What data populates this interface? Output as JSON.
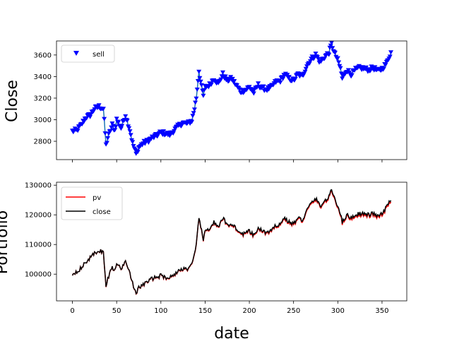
{
  "chart_data": [
    {
      "type": "line",
      "ylabel": "Close",
      "xlim": [
        -18,
        378
      ],
      "ylim": [
        2630,
        3730
      ],
      "yticks": [
        2800,
        3000,
        3200,
        3400,
        3600
      ],
      "xticks": [
        0,
        50,
        100,
        150,
        200,
        250,
        300,
        350
      ],
      "show_xtick_labels": false,
      "legend": {
        "placement": "top-left",
        "entries": [
          {
            "label": "sell",
            "color": "#0000ff",
            "marker": "triangle-down"
          }
        ]
      },
      "line_color": "#1f77b4",
      "marker_color": "#0000ff",
      "anchors": [
        [
          0,
          2890
        ],
        [
          5,
          2900
        ],
        [
          10,
          2950
        ],
        [
          15,
          3020
        ],
        [
          20,
          3040
        ],
        [
          25,
          3100
        ],
        [
          30,
          3120
        ],
        [
          35,
          3100
        ],
        [
          38,
          2760
        ],
        [
          40,
          2830
        ],
        [
          45,
          2950
        ],
        [
          48,
          2900
        ],
        [
          50,
          3000
        ],
        [
          55,
          2920
        ],
        [
          60,
          3040
        ],
        [
          65,
          2900
        ],
        [
          68,
          2780
        ],
        [
          72,
          2680
        ],
        [
          75,
          2740
        ],
        [
          80,
          2780
        ],
        [
          85,
          2800
        ],
        [
          90,
          2830
        ],
        [
          95,
          2850
        ],
        [
          100,
          2880
        ],
        [
          105,
          2870
        ],
        [
          110,
          2860
        ],
        [
          115,
          2900
        ],
        [
          120,
          2940
        ],
        [
          125,
          2970
        ],
        [
          130,
          2960
        ],
        [
          135,
          2990
        ],
        [
          138,
          3100
        ],
        [
          140,
          3200
        ],
        [
          143,
          3450
        ],
        [
          146,
          3300
        ],
        [
          148,
          3220
        ],
        [
          150,
          3300
        ],
        [
          155,
          3320
        ],
        [
          160,
          3380
        ],
        [
          165,
          3330
        ],
        [
          170,
          3420
        ],
        [
          175,
          3360
        ],
        [
          180,
          3380
        ],
        [
          185,
          3320
        ],
        [
          190,
          3260
        ],
        [
          195,
          3270
        ],
        [
          200,
          3300
        ],
        [
          205,
          3250
        ],
        [
          210,
          3320
        ],
        [
          215,
          3290
        ],
        [
          220,
          3280
        ],
        [
          225,
          3300
        ],
        [
          230,
          3350
        ],
        [
          235,
          3360
        ],
        [
          240,
          3420
        ],
        [
          245,
          3380
        ],
        [
          250,
          3360
        ],
        [
          255,
          3420
        ],
        [
          260,
          3400
        ],
        [
          265,
          3500
        ],
        [
          270,
          3560
        ],
        [
          275,
          3600
        ],
        [
          280,
          3530
        ],
        [
          285,
          3580
        ],
        [
          290,
          3620
        ],
        [
          293,
          3700
        ],
        [
          296,
          3620
        ],
        [
          300,
          3550
        ],
        [
          303,
          3470
        ],
        [
          305,
          3380
        ],
        [
          310,
          3460
        ],
        [
          315,
          3420
        ],
        [
          320,
          3460
        ],
        [
          325,
          3480
        ],
        [
          330,
          3470
        ],
        [
          335,
          3460
        ],
        [
          340,
          3480
        ],
        [
          345,
          3450
        ],
        [
          350,
          3470
        ],
        [
          355,
          3520
        ],
        [
          360,
          3620
        ]
      ]
    },
    {
      "type": "line",
      "xlabel": "date",
      "ylabel": "Portfolio",
      "xlim": [
        -18,
        378
      ],
      "ylim": [
        91000,
        131000
      ],
      "yticks": [
        100000,
        110000,
        120000,
        130000
      ],
      "xticks": [
        0,
        50,
        100,
        150,
        200,
        250,
        300,
        350
      ],
      "legend": {
        "placement": "top-left",
        "entries": [
          {
            "label": "pv",
            "color": "#ff0000"
          },
          {
            "label": "close",
            "color": "#000000"
          }
        ]
      },
      "series": [
        {
          "name": "pv",
          "color": "#ff0000",
          "offset": -500
        },
        {
          "name": "close",
          "color": "#000000",
          "offset": 0
        }
      ],
      "anchors": [
        [
          0,
          100000
        ],
        [
          5,
          101000
        ],
        [
          10,
          102000
        ],
        [
          15,
          104000
        ],
        [
          20,
          105500
        ],
        [
          25,
          107000
        ],
        [
          30,
          108000
        ],
        [
          35,
          107500
        ],
        [
          38,
          95500
        ],
        [
          40,
          98500
        ],
        [
          45,
          102500
        ],
        [
          48,
          101000
        ],
        [
          50,
          104000
        ],
        [
          55,
          101500
        ],
        [
          60,
          105000
        ],
        [
          65,
          100500
        ],
        [
          68,
          97000
        ],
        [
          72,
          93000
        ],
        [
          75,
          95500
        ],
        [
          80,
          96500
        ],
        [
          85,
          97500
        ],
        [
          90,
          98500
        ],
        [
          95,
          99000
        ],
        [
          100,
          99500
        ],
        [
          105,
          99000
        ],
        [
          110,
          98800
        ],
        [
          115,
          100000
        ],
        [
          120,
          101000
        ],
        [
          125,
          102000
        ],
        [
          130,
          101800
        ],
        [
          135,
          103000
        ],
        [
          138,
          106500
        ],
        [
          140,
          109500
        ],
        [
          143,
          119500
        ],
        [
          146,
          114500
        ],
        [
          148,
          111500
        ],
        [
          150,
          114500
        ],
        [
          155,
          115500
        ],
        [
          160,
          117500
        ],
        [
          165,
          115500
        ],
        [
          170,
          119000
        ],
        [
          175,
          116500
        ],
        [
          180,
          117000
        ],
        [
          185,
          115500
        ],
        [
          190,
          113500
        ],
        [
          195,
          113800
        ],
        [
          200,
          114500
        ],
        [
          205,
          113000
        ],
        [
          210,
          115500
        ],
        [
          215,
          114500
        ],
        [
          220,
          114000
        ],
        [
          225,
          114500
        ],
        [
          230,
          116500
        ],
        [
          235,
          117000
        ],
        [
          240,
          119000
        ],
        [
          245,
          117500
        ],
        [
          250,
          117000
        ],
        [
          255,
          119000
        ],
        [
          260,
          118200
        ],
        [
          265,
          121500
        ],
        [
          270,
          124000
        ],
        [
          275,
          125500
        ],
        [
          280,
          123000
        ],
        [
          285,
          124500
        ],
        [
          290,
          126000
        ],
        [
          293,
          128500
        ],
        [
          296,
          126000
        ],
        [
          300,
          123000
        ],
        [
          303,
          120500
        ],
        [
          305,
          117500
        ],
        [
          310,
          120000
        ],
        [
          315,
          119000
        ],
        [
          320,
          120000
        ],
        [
          325,
          120500
        ],
        [
          330,
          120300
        ],
        [
          335,
          120000
        ],
        [
          340,
          120500
        ],
        [
          345,
          119500
        ],
        [
          350,
          120300
        ],
        [
          355,
          122500
        ],
        [
          360,
          125500
        ]
      ]
    }
  ]
}
